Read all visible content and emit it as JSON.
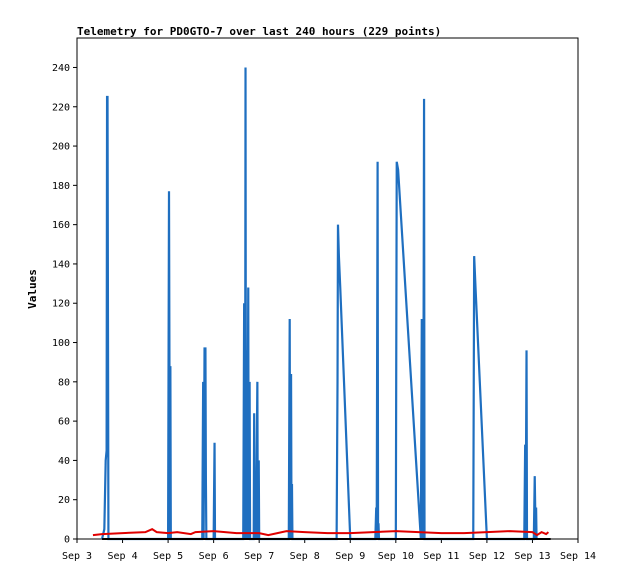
{
  "chart_data": {
    "type": "line",
    "title": "Telemetry for PD0GTO-7 over last 240 hours (229 points)",
    "xlabel": "",
    "ylabel": "Values",
    "ylim": [
      0,
      255
    ],
    "y_ticks": [
      0,
      20,
      40,
      60,
      80,
      100,
      120,
      140,
      160,
      180,
      200,
      220,
      240
    ],
    "x_tick_labels": [
      "Sep 3",
      "Sep 4",
      "Sep 5",
      "Sep 6",
      "Sep 7",
      "Sep 8",
      "Sep 9",
      "Sep 10",
      "Sep 11",
      "Sep 12",
      "Sep 13",
      "Sep 14"
    ],
    "x_unit": "days after Sep 3",
    "xlim": [
      0,
      11
    ],
    "grid": false,
    "colors": {
      "series_blue": "#1f6fc0",
      "series_red": "#e00000",
      "series_black": "#000000"
    },
    "series": [
      {
        "color": "#1f6fc0",
        "points": [
          [
            0.55,
            0
          ],
          [
            0.6,
            5
          ],
          [
            0.63,
            40
          ],
          [
            0.65,
            45
          ],
          [
            0.66,
            225
          ],
          [
            0.67,
            225
          ],
          [
            0.68,
            112
          ],
          [
            0.69,
            0
          ],
          [
            2.0,
            0
          ],
          [
            2.02,
            177
          ],
          [
            2.04,
            0
          ],
          [
            2.05,
            88
          ],
          [
            2.06,
            0
          ],
          [
            2.75,
            0
          ],
          [
            2.77,
            80
          ],
          [
            2.78,
            0
          ],
          [
            2.8,
            97
          ],
          [
            2.82,
            97
          ],
          [
            2.83,
            30
          ],
          [
            2.84,
            0
          ],
          [
            3.0,
            0
          ],
          [
            3.02,
            49
          ],
          [
            3.03,
            0
          ],
          [
            3.65,
            0
          ],
          [
            3.67,
            120
          ],
          [
            3.69,
            0
          ],
          [
            3.7,
            240
          ],
          [
            3.71,
            0
          ],
          [
            3.73,
            96
          ],
          [
            3.74,
            0
          ],
          [
            3.76,
            128
          ],
          [
            3.77,
            0
          ],
          [
            3.79,
            80
          ],
          [
            3.8,
            0
          ],
          [
            3.88,
            0
          ],
          [
            3.89,
            64
          ],
          [
            3.9,
            0
          ],
          [
            3.92,
            32
          ],
          [
            3.93,
            0
          ],
          [
            3.96,
            80
          ],
          [
            3.97,
            0
          ],
          [
            3.99,
            40
          ],
          [
            4.0,
            0
          ],
          [
            4.65,
            0
          ],
          [
            4.67,
            112
          ],
          [
            4.68,
            0
          ],
          [
            4.7,
            84
          ],
          [
            4.71,
            0
          ],
          [
            4.72,
            28
          ],
          [
            4.73,
            0
          ],
          [
            5.7,
            0
          ],
          [
            5.72,
            80
          ],
          [
            5.73,
            160
          ],
          [
            5.75,
            144
          ],
          [
            5.78,
            128
          ],
          [
            6.0,
            0
          ],
          [
            6.55,
            0
          ],
          [
            6.57,
            16
          ],
          [
            6.58,
            0
          ],
          [
            6.6,
            192
          ],
          [
            6.61,
            0
          ],
          [
            6.62,
            8
          ],
          [
            6.63,
            0
          ],
          [
            7.0,
            0
          ],
          [
            7.02,
            192
          ],
          [
            7.05,
            188
          ],
          [
            7.55,
            0
          ],
          [
            7.57,
            112
          ],
          [
            7.59,
            0
          ],
          [
            7.61,
            112
          ],
          [
            7.62,
            224
          ],
          [
            7.63,
            0
          ],
          [
            8.7,
            0
          ],
          [
            8.72,
            144
          ],
          [
            8.75,
            128
          ],
          [
            9.0,
            0
          ],
          [
            9.82,
            0
          ],
          [
            9.84,
            48
          ],
          [
            9.85,
            0
          ],
          [
            9.87,
            96
          ],
          [
            9.88,
            0
          ],
          [
            10.03,
            0
          ],
          [
            10.05,
            32
          ],
          [
            10.07,
            0
          ],
          [
            10.08,
            16
          ],
          [
            10.09,
            0
          ]
        ]
      },
      {
        "color": "#e00000",
        "points": [
          [
            0.35,
            2
          ],
          [
            0.55,
            2.5
          ],
          [
            1.0,
            3
          ],
          [
            1.5,
            3.5
          ],
          [
            1.65,
            5
          ],
          [
            1.75,
            3.5
          ],
          [
            2.0,
            3
          ],
          [
            2.2,
            3.5
          ],
          [
            2.5,
            2.5
          ],
          [
            2.6,
            3.5
          ],
          [
            3.0,
            4
          ],
          [
            3.5,
            3
          ],
          [
            4.0,
            3
          ],
          [
            4.2,
            2
          ],
          [
            4.4,
            3
          ],
          [
            4.6,
            4
          ],
          [
            5.0,
            3.5
          ],
          [
            5.5,
            3
          ],
          [
            6.0,
            3
          ],
          [
            6.5,
            3.5
          ],
          [
            7.0,
            4
          ],
          [
            7.5,
            3.5
          ],
          [
            8.0,
            3
          ],
          [
            8.5,
            3
          ],
          [
            9.0,
            3.5
          ],
          [
            9.5,
            4
          ],
          [
            10.0,
            3.5
          ],
          [
            10.1,
            2
          ],
          [
            10.2,
            3.5
          ],
          [
            10.3,
            2.5
          ],
          [
            10.35,
            3.5
          ]
        ]
      },
      {
        "color": "#000000",
        "points": [
          [
            0.55,
            0
          ],
          [
            10.4,
            0
          ]
        ]
      }
    ]
  }
}
